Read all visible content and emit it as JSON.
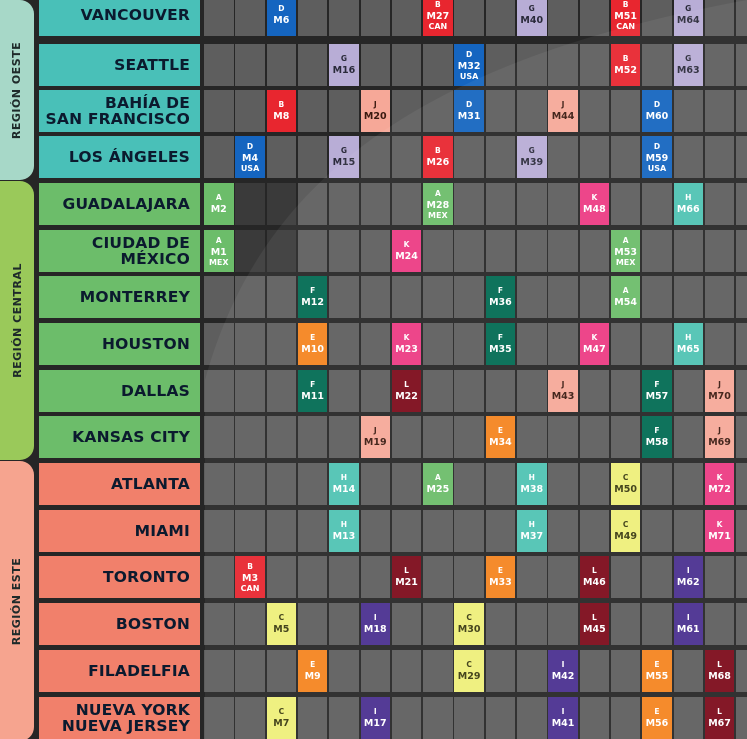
{
  "regions": [
    {
      "label": "REGIÓN OESTE",
      "color": "#a7d8c8"
    },
    {
      "label": "REGIÓN CENTRAL",
      "color": "#9ac95a"
    },
    {
      "label": "REGIÓN ESTE",
      "color": "#f6a48f"
    }
  ],
  "cities": [
    {
      "lines": [
        "VANCOUVER"
      ],
      "color": "#49c0b8"
    },
    {
      "lines": [
        "SEATTLE"
      ],
      "color": "#49c0b8"
    },
    {
      "lines": [
        "BAHÍA DE",
        "SAN FRANCISCO"
      ],
      "color": "#49c0b8"
    },
    {
      "lines": [
        "LOS ÁNGELES"
      ],
      "color": "#49c0b8"
    },
    {
      "lines": [
        "GUADALAJARA"
      ],
      "color": "#6cbd6a"
    },
    {
      "lines": [
        "CIUDAD DE",
        "MÉXICO"
      ],
      "color": "#6cbd6a"
    },
    {
      "lines": [
        "MONTERREY"
      ],
      "color": "#6cbd6a"
    },
    {
      "lines": [
        "HOUSTON"
      ],
      "color": "#6cbd6a"
    },
    {
      "lines": [
        "DALLAS"
      ],
      "color": "#6cbd6a"
    },
    {
      "lines": [
        "KANSAS CITY"
      ],
      "color": "#6cbd6a"
    },
    {
      "lines": [
        "ATLANTA"
      ],
      "color": "#f1806b"
    },
    {
      "lines": [
        "MIAMI"
      ],
      "color": "#f1806b"
    },
    {
      "lines": [
        "TORONTO"
      ],
      "color": "#f1806b"
    },
    {
      "lines": [
        "BOSTON"
      ],
      "color": "#f1806b"
    },
    {
      "lines": [
        "FILADELFIA"
      ],
      "color": "#f1806b"
    },
    {
      "lines": [
        "NUEVA YORK",
        "NUEVA JERSEY"
      ],
      "color": "#f1806b"
    }
  ],
  "groups": {
    "A": {
      "bg": "#6cbd6a",
      "fg": "#ffffff"
    },
    "B": {
      "bg": "#e8262f",
      "fg": "#ffffff"
    },
    "C": {
      "bg": "#eef07a",
      "fg": "#3a3a10"
    },
    "D": {
      "bg": "#1565c0",
      "fg": "#ffffff"
    },
    "E": {
      "bg": "#f5841f",
      "fg": "#ffffff"
    },
    "F": {
      "bg": "#006b52",
      "fg": "#ffffff"
    },
    "G": {
      "bg": "#b8add6",
      "fg": "#2a2a3a"
    },
    "H": {
      "bg": "#4fc3b3",
      "fg": "#ffffff"
    },
    "I": {
      "bg": "#4a2f90",
      "fg": "#ffffff"
    },
    "J": {
      "bg": "#f6a898",
      "fg": "#3a1a10"
    },
    "K": {
      "bg": "#ec3b83",
      "fg": "#ffffff"
    },
    "L": {
      "bg": "#7d0a1a",
      "fg": "#ffffff"
    }
  },
  "matches": [
    {
      "r": 0,
      "c": 2,
      "g": "D",
      "n": "M6"
    },
    {
      "r": 0,
      "c": 7,
      "g": "B",
      "n": "M27",
      "h": "CAN"
    },
    {
      "r": 0,
      "c": 10,
      "g": "G",
      "n": "M40"
    },
    {
      "r": 0,
      "c": 13,
      "g": "B",
      "n": "M51",
      "h": "CAN"
    },
    {
      "r": 0,
      "c": 15,
      "g": "G",
      "n": "M64"
    },
    {
      "r": 1,
      "c": 4,
      "g": "G",
      "n": "M16"
    },
    {
      "r": 1,
      "c": 8,
      "g": "D",
      "n": "M32",
      "h": "USA"
    },
    {
      "r": 1,
      "c": 13,
      "g": "B",
      "n": "M52"
    },
    {
      "r": 1,
      "c": 15,
      "g": "G",
      "n": "M63"
    },
    {
      "r": 2,
      "c": 2,
      "g": "B",
      "n": "M8"
    },
    {
      "r": 2,
      "c": 5,
      "g": "J",
      "n": "M20"
    },
    {
      "r": 2,
      "c": 8,
      "g": "D",
      "n": "M31"
    },
    {
      "r": 2,
      "c": 11,
      "g": "J",
      "n": "M44"
    },
    {
      "r": 2,
      "c": 14,
      "g": "D",
      "n": "M60"
    },
    {
      "r": 3,
      "c": 1,
      "g": "D",
      "n": "M4",
      "h": "USA"
    },
    {
      "r": 3,
      "c": 4,
      "g": "G",
      "n": "M15"
    },
    {
      "r": 3,
      "c": 7,
      "g": "B",
      "n": "M26"
    },
    {
      "r": 3,
      "c": 10,
      "g": "G",
      "n": "M39"
    },
    {
      "r": 3,
      "c": 14,
      "g": "D",
      "n": "M59",
      "h": "USA"
    },
    {
      "r": 4,
      "c": 0,
      "g": "A",
      "n": "M2"
    },
    {
      "r": 4,
      "c": 7,
      "g": "A",
      "n": "M28",
      "h": "MEX"
    },
    {
      "r": 4,
      "c": 12,
      "g": "K",
      "n": "M48"
    },
    {
      "r": 4,
      "c": 15,
      "g": "H",
      "n": "M66"
    },
    {
      "r": 5,
      "c": 0,
      "g": "A",
      "n": "M1",
      "h": "MEX"
    },
    {
      "r": 5,
      "c": 6,
      "g": "K",
      "n": "M24"
    },
    {
      "r": 5,
      "c": 13,
      "g": "A",
      "n": "M53",
      "h": "MEX"
    },
    {
      "r": 6,
      "c": 3,
      "g": "F",
      "n": "M12"
    },
    {
      "r": 6,
      "c": 9,
      "g": "F",
      "n": "M36"
    },
    {
      "r": 6,
      "c": 13,
      "g": "A",
      "n": "M54"
    },
    {
      "r": 7,
      "c": 3,
      "g": "E",
      "n": "M10"
    },
    {
      "r": 7,
      "c": 6,
      "g": "K",
      "n": "M23"
    },
    {
      "r": 7,
      "c": 9,
      "g": "F",
      "n": "M35"
    },
    {
      "r": 7,
      "c": 12,
      "g": "K",
      "n": "M47"
    },
    {
      "r": 7,
      "c": 15,
      "g": "H",
      "n": "M65"
    },
    {
      "r": 8,
      "c": 3,
      "g": "F",
      "n": "M11"
    },
    {
      "r": 8,
      "c": 6,
      "g": "L",
      "n": "M22"
    },
    {
      "r": 8,
      "c": 11,
      "g": "J",
      "n": "M43"
    },
    {
      "r": 8,
      "c": 14,
      "g": "F",
      "n": "M57"
    },
    {
      "r": 8,
      "c": 16,
      "g": "J",
      "n": "M70"
    },
    {
      "r": 9,
      "c": 5,
      "g": "J",
      "n": "M19"
    },
    {
      "r": 9,
      "c": 9,
      "g": "E",
      "n": "M34"
    },
    {
      "r": 9,
      "c": 14,
      "g": "F",
      "n": "M58"
    },
    {
      "r": 9,
      "c": 16,
      "g": "J",
      "n": "M69"
    },
    {
      "r": 10,
      "c": 4,
      "g": "H",
      "n": "M14"
    },
    {
      "r": 10,
      "c": 7,
      "g": "A",
      "n": "M25"
    },
    {
      "r": 10,
      "c": 10,
      "g": "H",
      "n": "M38"
    },
    {
      "r": 10,
      "c": 13,
      "g": "C",
      "n": "M50"
    },
    {
      "r": 10,
      "c": 16,
      "g": "K",
      "n": "M72"
    },
    {
      "r": 11,
      "c": 4,
      "g": "H",
      "n": "M13"
    },
    {
      "r": 11,
      "c": 10,
      "g": "H",
      "n": "M37"
    },
    {
      "r": 11,
      "c": 13,
      "g": "C",
      "n": "M49"
    },
    {
      "r": 11,
      "c": 16,
      "g": "K",
      "n": "M71"
    },
    {
      "r": 12,
      "c": 1,
      "g": "B",
      "n": "M3",
      "h": "CAN"
    },
    {
      "r": 12,
      "c": 6,
      "g": "L",
      "n": "M21"
    },
    {
      "r": 12,
      "c": 9,
      "g": "E",
      "n": "M33"
    },
    {
      "r": 12,
      "c": 12,
      "g": "L",
      "n": "M46"
    },
    {
      "r": 12,
      "c": 15,
      "g": "I",
      "n": "M62"
    },
    {
      "r": 13,
      "c": 2,
      "g": "C",
      "n": "M5"
    },
    {
      "r": 13,
      "c": 5,
      "g": "I",
      "n": "M18"
    },
    {
      "r": 13,
      "c": 8,
      "g": "C",
      "n": "M30"
    },
    {
      "r": 13,
      "c": 12,
      "g": "L",
      "n": "M45"
    },
    {
      "r": 13,
      "c": 15,
      "g": "I",
      "n": "M61"
    },
    {
      "r": 14,
      "c": 3,
      "g": "E",
      "n": "M9"
    },
    {
      "r": 14,
      "c": 8,
      "g": "C",
      "n": "M29"
    },
    {
      "r": 14,
      "c": 11,
      "g": "I",
      "n": "M42"
    },
    {
      "r": 14,
      "c": 14,
      "g": "E",
      "n": "M55"
    },
    {
      "r": 14,
      "c": 16,
      "g": "L",
      "n": "M68"
    },
    {
      "r": 15,
      "c": 2,
      "g": "C",
      "n": "M7"
    },
    {
      "r": 15,
      "c": 5,
      "g": "I",
      "n": "M17"
    },
    {
      "r": 15,
      "c": 11,
      "g": "I",
      "n": "M41"
    },
    {
      "r": 15,
      "c": 14,
      "g": "E",
      "n": "M56"
    },
    {
      "r": 15,
      "c": 16,
      "g": "L",
      "n": "M67"
    }
  ]
}
